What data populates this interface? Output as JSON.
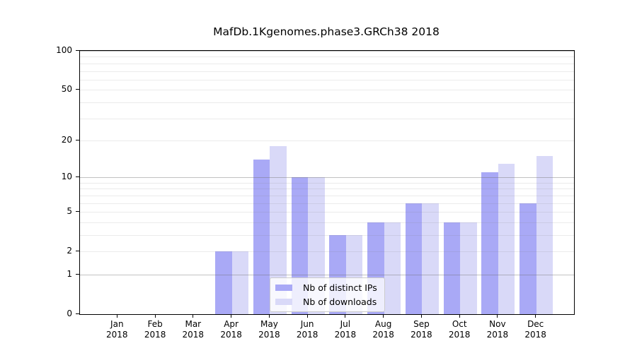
{
  "chart_data": {
    "type": "bar",
    "title": "MafDb.1Kgenomes.phase3.GRCh38 2018",
    "categories": [
      "Jan 2018",
      "Feb 2018",
      "Mar 2018",
      "Apr 2018",
      "May 2018",
      "Jun 2018",
      "Jul 2018",
      "Aug 2018",
      "Sep 2018",
      "Oct 2018",
      "Nov 2018",
      "Dec 2018"
    ],
    "series": [
      {
        "name": "Nb of distinct IPs",
        "color": "#a9a9f6",
        "values": [
          0,
          0,
          0,
          2,
          14,
          10,
          3,
          4,
          6,
          4,
          11,
          6
        ]
      },
      {
        "name": "Nb of downloads",
        "color": "#d9d9f8",
        "values": [
          0,
          0,
          0,
          2,
          18,
          10,
          3,
          4,
          6,
          4,
          13,
          15
        ]
      }
    ],
    "yscale": "log1p",
    "ylim": [
      0,
      100
    ],
    "yticks": [
      100,
      50,
      20,
      10,
      5,
      2,
      1,
      0
    ],
    "grid": true,
    "legend_position": "lower center"
  },
  "axis_colors": {
    "spine": "#000000",
    "grid_minor": "#ebebeb",
    "grid_major": "#c9c9c9"
  }
}
